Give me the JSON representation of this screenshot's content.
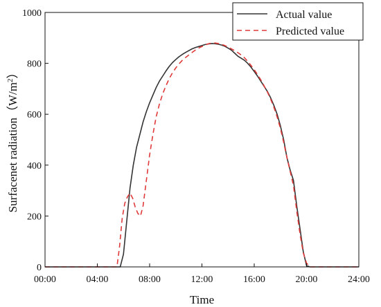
{
  "chart_data": {
    "type": "line",
    "xlabel": "Time",
    "ylabel": "Surfacenet radiation（W/m²）",
    "ylabel_parts": {
      "text": "Surfacenet radiation（W/m",
      "sup": "2",
      "close": "）"
    },
    "xlim": [
      0,
      24
    ],
    "ylim": [
      0,
      1000
    ],
    "x_ticks": [
      {
        "value": 0,
        "label": "00:00"
      },
      {
        "value": 4,
        "label": "04:00"
      },
      {
        "value": 8,
        "label": "08:00"
      },
      {
        "value": 12,
        "label": "12:00"
      },
      {
        "value": 16,
        "label": "16:00"
      },
      {
        "value": 20,
        "label": "20:00"
      },
      {
        "value": 24,
        "label": "24:00"
      }
    ],
    "y_ticks": [
      {
        "value": 0,
        "label": "0"
      },
      {
        "value": 200,
        "label": "200"
      },
      {
        "value": 400,
        "label": "400"
      },
      {
        "value": 600,
        "label": "600"
      },
      {
        "value": 800,
        "label": "800"
      },
      {
        "value": 1000,
        "label": "1000"
      }
    ],
    "grid": false,
    "legend_position": "top-right",
    "series": [
      {
        "name": "Actual value",
        "color": "#333333",
        "style": "solid",
        "points": [
          [
            0,
            0
          ],
          [
            5.75,
            0
          ],
          [
            6.0,
            50
          ],
          [
            6.25,
            180
          ],
          [
            6.5,
            310
          ],
          [
            6.75,
            400
          ],
          [
            7.0,
            470
          ],
          [
            7.25,
            520
          ],
          [
            7.5,
            570
          ],
          [
            7.75,
            610
          ],
          [
            8.0,
            645
          ],
          [
            8.25,
            675
          ],
          [
            8.5,
            705
          ],
          [
            8.75,
            730
          ],
          [
            9.0,
            750
          ],
          [
            9.25,
            770
          ],
          [
            9.5,
            788
          ],
          [
            9.75,
            803
          ],
          [
            10.0,
            815
          ],
          [
            10.25,
            826
          ],
          [
            10.5,
            835
          ],
          [
            10.75,
            843
          ],
          [
            11.0,
            850
          ],
          [
            11.25,
            857
          ],
          [
            11.5,
            862
          ],
          [
            11.75,
            866
          ],
          [
            12.0,
            870
          ],
          [
            12.25,
            874
          ],
          [
            12.5,
            876
          ],
          [
            12.75,
            878
          ],
          [
            13.0,
            877
          ],
          [
            13.25,
            875
          ],
          [
            13.5,
            872
          ],
          [
            13.75,
            867
          ],
          [
            14.0,
            860
          ],
          [
            14.25,
            852
          ],
          [
            14.5,
            840
          ],
          [
            14.75,
            828
          ],
          [
            15.0,
            820
          ],
          [
            15.25,
            812
          ],
          [
            15.5,
            800
          ],
          [
            15.75,
            785
          ],
          [
            16.0,
            768
          ],
          [
            16.25,
            750
          ],
          [
            16.5,
            730
          ],
          [
            16.75,
            710
          ],
          [
            17.0,
            690
          ],
          [
            17.25,
            665
          ],
          [
            17.5,
            635
          ],
          [
            17.75,
            600
          ],
          [
            18.0,
            555
          ],
          [
            18.25,
            500
          ],
          [
            18.5,
            430
          ],
          [
            18.75,
            380
          ],
          [
            19.0,
            340
          ],
          [
            19.25,
            240
          ],
          [
            19.5,
            150
          ],
          [
            19.75,
            60
          ],
          [
            20.0,
            5
          ],
          [
            20.25,
            0
          ],
          [
            24,
            0
          ]
        ]
      },
      {
        "name": "Predicted value",
        "color": "#e03a3a",
        "style": "dashed",
        "points": [
          [
            0,
            0
          ],
          [
            5.5,
            0
          ],
          [
            5.7,
            80
          ],
          [
            5.9,
            190
          ],
          [
            6.1,
            250
          ],
          [
            6.3,
            275
          ],
          [
            6.5,
            290
          ],
          [
            6.7,
            270
          ],
          [
            6.9,
            235
          ],
          [
            7.1,
            210
          ],
          [
            7.3,
            200
          ],
          [
            7.5,
            240
          ],
          [
            7.75,
            340
          ],
          [
            8.0,
            440
          ],
          [
            8.25,
            520
          ],
          [
            8.5,
            590
          ],
          [
            8.75,
            640
          ],
          [
            9.0,
            680
          ],
          [
            9.25,
            712
          ],
          [
            9.5,
            740
          ],
          [
            9.75,
            763
          ],
          [
            10.0,
            782
          ],
          [
            10.25,
            798
          ],
          [
            10.5,
            812
          ],
          [
            10.75,
            823
          ],
          [
            11.0,
            833
          ],
          [
            11.25,
            843
          ],
          [
            11.5,
            852
          ],
          [
            11.75,
            860
          ],
          [
            12.0,
            866
          ],
          [
            12.25,
            872
          ],
          [
            12.5,
            877
          ],
          [
            12.75,
            880
          ],
          [
            13.0,
            880
          ],
          [
            13.25,
            878
          ],
          [
            13.5,
            875
          ],
          [
            13.75,
            870
          ],
          [
            14.0,
            864
          ],
          [
            14.25,
            857
          ],
          [
            14.5,
            850
          ],
          [
            14.75,
            842
          ],
          [
            15.0,
            833
          ],
          [
            15.25,
            822
          ],
          [
            15.5,
            808
          ],
          [
            15.75,
            792
          ],
          [
            16.0,
            775
          ],
          [
            16.25,
            756
          ],
          [
            16.5,
            735
          ],
          [
            16.75,
            712
          ],
          [
            17.0,
            688
          ],
          [
            17.25,
            660
          ],
          [
            17.5,
            628
          ],
          [
            17.75,
            590
          ],
          [
            18.0,
            545
          ],
          [
            18.25,
            490
          ],
          [
            18.5,
            430
          ],
          [
            18.75,
            375
          ],
          [
            19.0,
            320
          ],
          [
            19.25,
            220
          ],
          [
            19.5,
            130
          ],
          [
            19.75,
            55
          ],
          [
            20.0,
            15
          ],
          [
            20.25,
            0
          ],
          [
            24,
            0
          ]
        ]
      }
    ]
  }
}
